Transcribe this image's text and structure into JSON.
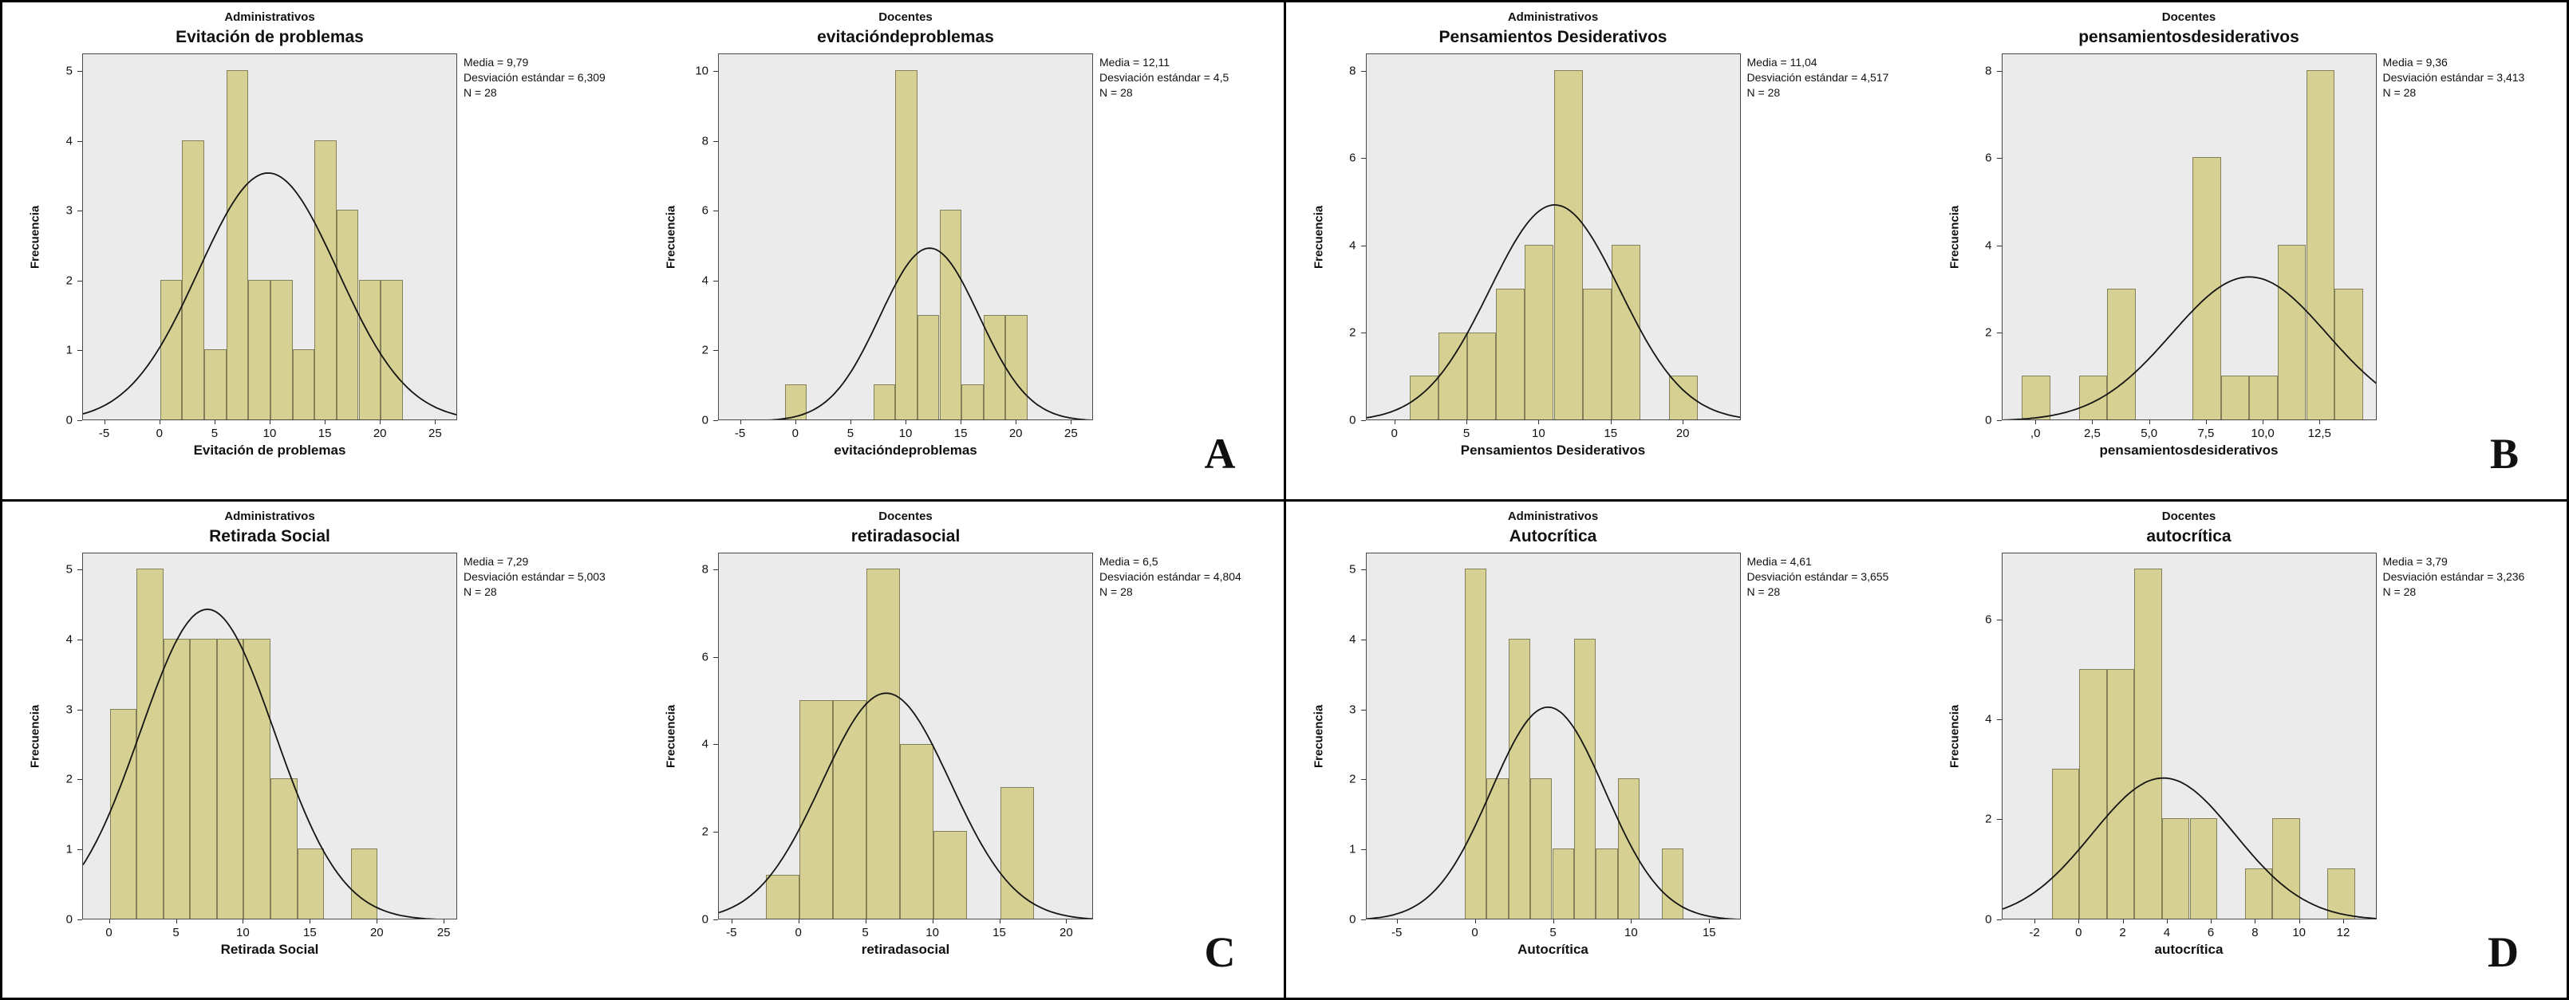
{
  "panel_letters": [
    "A",
    "B",
    "C",
    "D"
  ],
  "colors": {
    "bar_fill": "#d6d092",
    "bar_border": "#84805a",
    "plot_bg": "#ebebeb",
    "curve": "#141414",
    "frame": "#000000"
  },
  "chart_data": [
    {
      "type": "histogram",
      "panel": "A",
      "group_label": "Administrativos",
      "title": "Evitación de problemas",
      "ylabel": "Frecuencia",
      "xlabel": "Evitación de problemas",
      "stats_lines": [
        "Media = 9,79",
        "Desviación estándar = 6,309",
        "N = 28"
      ],
      "xlim": [
        -7,
        27
      ],
      "ylim": [
        0,
        5.25
      ],
      "xticks": [
        -5,
        0,
        5,
        10,
        15,
        20,
        25
      ],
      "yticks": [
        0,
        1,
        2,
        3,
        4,
        5
      ],
      "bin_width": 2,
      "bars": [
        {
          "x": 0,
          "h": 2
        },
        {
          "x": 2,
          "h": 4
        },
        {
          "x": 4,
          "h": 1
        },
        {
          "x": 6,
          "h": 5
        },
        {
          "x": 8,
          "h": 2
        },
        {
          "x": 10,
          "h": 2
        },
        {
          "x": 12,
          "h": 1
        },
        {
          "x": 14,
          "h": 4
        },
        {
          "x": 16,
          "h": 3
        },
        {
          "x": 18,
          "h": 2
        },
        {
          "x": 20,
          "h": 2
        }
      ],
      "curve": {
        "mean": 9.79,
        "sd": 6.309,
        "peak": 3.55
      }
    },
    {
      "type": "histogram",
      "panel": "A",
      "group_label": "Docentes",
      "title": "evitacióndeproblemas",
      "ylabel": "Frecuencia",
      "xlabel": "evitacióndeproblemas",
      "stats_lines": [
        "Media = 12,11",
        "Desviación estándar = 4,5",
        "N = 28"
      ],
      "xlim": [
        -7,
        27
      ],
      "ylim": [
        0,
        10.5
      ],
      "xticks": [
        -5,
        0,
        5,
        10,
        15,
        20,
        25
      ],
      "yticks": [
        0,
        2,
        4,
        6,
        8,
        10
      ],
      "bin_width": 2,
      "bars": [
        {
          "x": -1,
          "h": 1
        },
        {
          "x": 7,
          "h": 1
        },
        {
          "x": 9,
          "h": 10
        },
        {
          "x": 11,
          "h": 3
        },
        {
          "x": 13,
          "h": 6
        },
        {
          "x": 15,
          "h": 1
        },
        {
          "x": 17,
          "h": 3
        },
        {
          "x": 19,
          "h": 3
        }
      ],
      "curve": {
        "mean": 12.11,
        "sd": 4.5,
        "peak": 4.95
      }
    },
    {
      "type": "histogram",
      "panel": "B",
      "group_label": "Administrativos",
      "title": "Pensamientos Desiderativos",
      "ylabel": "Frecuencia",
      "xlabel": "Pensamientos Desiderativos",
      "stats_lines": [
        "Media = 11,04",
        "Desviación estándar = 4,517",
        "N = 28"
      ],
      "xlim": [
        -2,
        24
      ],
      "ylim": [
        0,
        8.4
      ],
      "xticks": [
        0,
        5,
        10,
        15,
        20
      ],
      "yticks": [
        0,
        2,
        4,
        6,
        8
      ],
      "bin_width": 2,
      "bars": [
        {
          "x": 1,
          "h": 1
        },
        {
          "x": 3,
          "h": 2
        },
        {
          "x": 5,
          "h": 2
        },
        {
          "x": 7,
          "h": 3
        },
        {
          "x": 9,
          "h": 4
        },
        {
          "x": 11,
          "h": 8
        },
        {
          "x": 13,
          "h": 3
        },
        {
          "x": 15,
          "h": 4
        },
        {
          "x": 19,
          "h": 1
        }
      ],
      "curve": {
        "mean": 11.04,
        "sd": 4.517,
        "peak": 4.95
      }
    },
    {
      "type": "histogram",
      "panel": "B",
      "group_label": "Docentes",
      "title": "pensamientosdesiderativos",
      "ylabel": "Frecuencia",
      "xlabel": "pensamientosdesiderativos",
      "stats_lines": [
        "Media = 9,36",
        "Desviación estándar = 3,413",
        "N = 28"
      ],
      "xlim": [
        -1.5,
        15
      ],
      "ylim": [
        0,
        8.4
      ],
      "xticks": [
        0,
        2.5,
        5,
        7.5,
        10,
        12.5
      ],
      "xtick_labels": [
        ",0",
        "2,5",
        "5,0",
        "7,5",
        "10,0",
        "12,5"
      ],
      "yticks": [
        0,
        2,
        4,
        6,
        8
      ],
      "bin_width": 1.25,
      "bars": [
        {
          "x": -0.625,
          "h": 1
        },
        {
          "x": 1.875,
          "h": 1
        },
        {
          "x": 3.125,
          "h": 3
        },
        {
          "x": 6.875,
          "h": 6
        },
        {
          "x": 8.125,
          "h": 1
        },
        {
          "x": 9.375,
          "h": 1
        },
        {
          "x": 10.625,
          "h": 4
        },
        {
          "x": 11.875,
          "h": 8
        },
        {
          "x": 13.125,
          "h": 3
        }
      ],
      "curve": {
        "mean": 9.36,
        "sd": 3.413,
        "peak": 3.3
      }
    },
    {
      "type": "histogram",
      "panel": "C",
      "group_label": "Administrativos",
      "title": "Retirada Social",
      "ylabel": "Frecuencia",
      "xlabel": "Retirada Social",
      "stats_lines": [
        "Media = 7,29",
        "Desviación estándar = 5,003",
        "N = 28"
      ],
      "xlim": [
        -2,
        26
      ],
      "ylim": [
        0,
        5.25
      ],
      "xticks": [
        0,
        5,
        10,
        15,
        20,
        25
      ],
      "yticks": [
        0,
        1,
        2,
        3,
        4,
        5
      ],
      "bin_width": 2,
      "bars": [
        {
          "x": 0,
          "h": 3
        },
        {
          "x": 2,
          "h": 5
        },
        {
          "x": 4,
          "h": 4
        },
        {
          "x": 6,
          "h": 4
        },
        {
          "x": 8,
          "h": 4
        },
        {
          "x": 10,
          "h": 4
        },
        {
          "x": 12,
          "h": 2
        },
        {
          "x": 14,
          "h": 1
        },
        {
          "x": 18,
          "h": 1
        }
      ],
      "curve": {
        "mean": 7.29,
        "sd": 5.003,
        "peak": 4.45
      }
    },
    {
      "type": "histogram",
      "panel": "C",
      "group_label": "Docentes",
      "title": "retiradasocial",
      "ylabel": "Frecuencia",
      "xlabel": "retiradasocial",
      "stats_lines": [
        "Media = 6,5",
        "Desviación estándar = 4,804",
        "N = 28"
      ],
      "xlim": [
        -6,
        22
      ],
      "ylim": [
        0,
        8.4
      ],
      "xticks": [
        -5,
        0,
        5,
        10,
        15,
        20
      ],
      "yticks": [
        0,
        2,
        4,
        6,
        8
      ],
      "bin_width": 2.5,
      "bars": [
        {
          "x": -2.5,
          "h": 1
        },
        {
          "x": 0,
          "h": 5
        },
        {
          "x": 2.5,
          "h": 5
        },
        {
          "x": 5,
          "h": 8
        },
        {
          "x": 7.5,
          "h": 4
        },
        {
          "x": 10,
          "h": 2
        },
        {
          "x": 15,
          "h": 3
        }
      ],
      "curve": {
        "mean": 6.5,
        "sd": 4.804,
        "peak": 5.2
      }
    },
    {
      "type": "histogram",
      "panel": "D",
      "group_label": "Administrativos",
      "title": "Autocrítica",
      "ylabel": "Frecuencia",
      "xlabel": "Autocrítica",
      "stats_lines": [
        "Media = 4,61",
        "Desviación estándar = 3,655",
        "N = 28"
      ],
      "xlim": [
        -7,
        17
      ],
      "ylim": [
        0,
        5.25
      ],
      "xticks": [
        -5,
        0,
        5,
        10,
        15
      ],
      "yticks": [
        0,
        1,
        2,
        3,
        4,
        5
      ],
      "bin_width": 1.4,
      "bars": [
        {
          "x": -0.7,
          "h": 5
        },
        {
          "x": 0.7,
          "h": 2
        },
        {
          "x": 2.1,
          "h": 4
        },
        {
          "x": 3.5,
          "h": 2
        },
        {
          "x": 4.9,
          "h": 1
        },
        {
          "x": 6.3,
          "h": 4
        },
        {
          "x": 7.7,
          "h": 1
        },
        {
          "x": 9.1,
          "h": 2
        },
        {
          "x": 11.9,
          "h": 1
        }
      ],
      "curve": {
        "mean": 4.61,
        "sd": 3.655,
        "peak": 3.05
      }
    },
    {
      "type": "histogram",
      "panel": "D",
      "group_label": "Docentes",
      "title": "autocrítica",
      "ylabel": "Frecuencia",
      "xlabel": "autocrítica",
      "stats_lines": [
        "Media = 3,79",
        "Desviación estándar = 3,236",
        "N = 28"
      ],
      "xlim": [
        -3.5,
        13.5
      ],
      "ylim": [
        0,
        7.35
      ],
      "xticks": [
        -2,
        0,
        2,
        4,
        6,
        8,
        10,
        12
      ],
      "yticks": [
        0,
        2,
        4,
        6
      ],
      "bin_width": 1.25,
      "bars": [
        {
          "x": -1.25,
          "h": 3
        },
        {
          "x": 0,
          "h": 5
        },
        {
          "x": 1.25,
          "h": 5
        },
        {
          "x": 2.5,
          "h": 7
        },
        {
          "x": 3.75,
          "h": 2
        },
        {
          "x": 5,
          "h": 2
        },
        {
          "x": 7.5,
          "h": 1
        },
        {
          "x": 8.75,
          "h": 2
        },
        {
          "x": 11.25,
          "h": 1
        }
      ],
      "curve": {
        "mean": 3.79,
        "sd": 3.236,
        "peak": 2.85
      }
    }
  ]
}
